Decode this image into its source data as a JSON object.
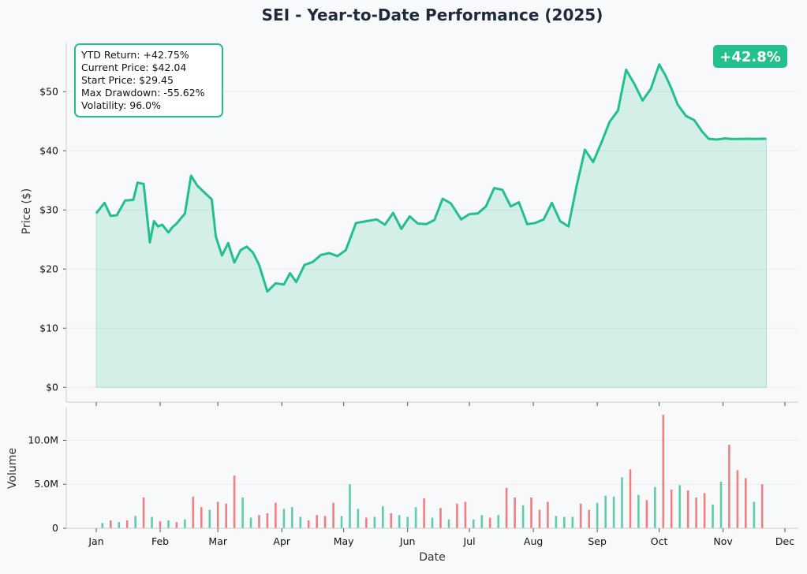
{
  "colors": {
    "background": "#f8f9fb",
    "price_line": "#22c08a",
    "price_fill": "#22c08a",
    "volume_up": "#5fcda5",
    "volume_down": "#ee8080",
    "badge": "#22c08a",
    "title": "#1e2a3a",
    "grid": "#e9ecf0"
  },
  "chart_data": [
    {
      "type": "line",
      "title": "SEI - Year-to-Date Performance (2025)",
      "ylabel": "Price ($)",
      "xlabel": "",
      "ylim": [
        -2.5,
        57.5
      ],
      "yticks": [
        0,
        10,
        20,
        30,
        40,
        50
      ],
      "ytick_labels": [
        "$0",
        "$10",
        "$20",
        "$30",
        "$40",
        "$50"
      ],
      "grid": true,
      "fill_under_line": true,
      "badge": "+42.8%",
      "stats_box": {
        "ytd_return": "YTD Return: +42.75%",
        "current_price": "Current Price: $42.04",
        "start_price": "Start Price: $29.45",
        "max_drawdown": "Max Drawdown: -55.62%",
        "volatility": "Volatility: 96.0%"
      },
      "series": [
        {
          "x": [
            "2025-01-01",
            "2025-01-05",
            "2025-01-08",
            "2025-01-11",
            "2025-01-15",
            "2025-01-19",
            "2025-01-21",
            "2025-01-24",
            "2025-01-27",
            "2025-01-29",
            "2025-01-31",
            "2025-02-02",
            "2025-02-05",
            "2025-02-07",
            "2025-02-09",
            "2025-02-13",
            "2025-02-16",
            "2025-02-19",
            "2025-02-22",
            "2025-02-26",
            "2025-02-28",
            "2025-03-03",
            "2025-03-06",
            "2025-03-09",
            "2025-03-12",
            "2025-03-15",
            "2025-03-18",
            "2025-03-21",
            "2025-03-25",
            "2025-03-29",
            "2025-04-02",
            "2025-04-05",
            "2025-04-08",
            "2025-04-12",
            "2025-04-16",
            "2025-04-20",
            "2025-04-24",
            "2025-04-28",
            "2025-05-02",
            "2025-05-07",
            "2025-05-12",
            "2025-05-17",
            "2025-05-21",
            "2025-05-25",
            "2025-05-29",
            "2025-06-02",
            "2025-06-06",
            "2025-06-10",
            "2025-06-14",
            "2025-06-18",
            "2025-06-22",
            "2025-06-27",
            "2025-07-01",
            "2025-07-05",
            "2025-07-09",
            "2025-07-13",
            "2025-07-17",
            "2025-07-21",
            "2025-07-25",
            "2025-07-29",
            "2025-08-02",
            "2025-08-06",
            "2025-08-10",
            "2025-08-14",
            "2025-08-18",
            "2025-08-22",
            "2025-08-26",
            "2025-08-30",
            "2025-09-03",
            "2025-09-07",
            "2025-09-11",
            "2025-09-15",
            "2025-09-19",
            "2025-09-23",
            "2025-09-27",
            "2025-10-01",
            "2025-10-04",
            "2025-10-07",
            "2025-10-10",
            "2025-10-14",
            "2025-10-18",
            "2025-10-22",
            "2025-10-25",
            "2025-10-29",
            "2025-11-02",
            "2025-11-05",
            "2025-11-09",
            "2025-11-13",
            "2025-11-17",
            "2025-11-20",
            "2025-11-22"
          ],
          "values": [
            29.45,
            31.2,
            29.0,
            29.1,
            31.6,
            31.7,
            34.6,
            34.4,
            24.5,
            28.1,
            27.2,
            27.5,
            26.2,
            27.1,
            27.7,
            29.4,
            35.8,
            34.1,
            33.1,
            31.8,
            25.5,
            22.3,
            24.4,
            21.1,
            23.2,
            23.8,
            22.8,
            20.7,
            16.2,
            17.6,
            17.4,
            19.3,
            17.8,
            20.7,
            21.2,
            22.4,
            22.7,
            22.2,
            23.2,
            27.8,
            28.1,
            28.4,
            27.5,
            29.5,
            26.8,
            28.9,
            27.7,
            27.6,
            28.3,
            31.9,
            31.1,
            28.4,
            29.3,
            29.4,
            30.6,
            33.7,
            33.4,
            30.6,
            31.3,
            27.6,
            27.8,
            28.4,
            31.2,
            28.1,
            27.2,
            34.1,
            40.2,
            38.1,
            41.4,
            44.9,
            46.8,
            53.7,
            51.3,
            48.5,
            50.5,
            54.6,
            52.8,
            50.5,
            47.8,
            45.9,
            45.2,
            43.2,
            42.04,
            41.9,
            42.1,
            42.0,
            42.0,
            42.04,
            42.0,
            42.04,
            42.04
          ]
        }
      ]
    },
    {
      "type": "bar",
      "xlabel": "Date",
      "ylabel": "Volume",
      "ylim": [
        0,
        13000000
      ],
      "yticks": [
        0,
        5000000,
        10000000
      ],
      "ytick_labels": [
        "0",
        "5.0M",
        "10.0M"
      ],
      "xtick_labels": [
        "Jan",
        "Feb",
        "Mar",
        "Apr",
        "May",
        "Jun",
        "Jul",
        "Aug",
        "Sep",
        "Oct",
        "Nov",
        "Dec"
      ],
      "series": [
        {
          "x": [
            "2025-01-04",
            "2025-01-08",
            "2025-01-12",
            "2025-01-16",
            "2025-01-20",
            "2025-01-24",
            "2025-01-28",
            "2025-02-01",
            "2025-02-05",
            "2025-02-09",
            "2025-02-13",
            "2025-02-17",
            "2025-02-21",
            "2025-02-25",
            "2025-03-01",
            "2025-03-05",
            "2025-03-09",
            "2025-03-13",
            "2025-03-17",
            "2025-03-21",
            "2025-03-25",
            "2025-03-29",
            "2025-04-02",
            "2025-04-06",
            "2025-04-10",
            "2025-04-14",
            "2025-04-18",
            "2025-04-22",
            "2025-04-26",
            "2025-04-30",
            "2025-05-04",
            "2025-05-08",
            "2025-05-12",
            "2025-05-16",
            "2025-05-20",
            "2025-05-24",
            "2025-05-28",
            "2025-06-01",
            "2025-06-05",
            "2025-06-09",
            "2025-06-13",
            "2025-06-17",
            "2025-06-21",
            "2025-06-25",
            "2025-06-29",
            "2025-07-03",
            "2025-07-07",
            "2025-07-11",
            "2025-07-15",
            "2025-07-19",
            "2025-07-23",
            "2025-07-27",
            "2025-07-31",
            "2025-08-04",
            "2025-08-08",
            "2025-08-12",
            "2025-08-16",
            "2025-08-20",
            "2025-08-24",
            "2025-08-28",
            "2025-09-01",
            "2025-09-05",
            "2025-09-09",
            "2025-09-13",
            "2025-09-17",
            "2025-09-21",
            "2025-09-25",
            "2025-09-29",
            "2025-10-03",
            "2025-10-07",
            "2025-10-11",
            "2025-10-15",
            "2025-10-19",
            "2025-10-23",
            "2025-10-27",
            "2025-10-31",
            "2025-11-04",
            "2025-11-08",
            "2025-11-12",
            "2025-11-16",
            "2025-11-20"
          ],
          "values": [
            600000,
            900000,
            700000,
            900000,
            1400000,
            3500000,
            1300000,
            800000,
            900000,
            700000,
            1000000,
            3600000,
            2400000,
            2100000,
            3000000,
            2800000,
            6000000,
            3500000,
            1200000,
            1500000,
            1700000,
            2900000,
            2200000,
            2400000,
            1300000,
            900000,
            1500000,
            1400000,
            2900000,
            1400000,
            5000000,
            2200000,
            1200000,
            1300000,
            2500000,
            1700000,
            1500000,
            1300000,
            2400000,
            3400000,
            1200000,
            2300000,
            1000000,
            2800000,
            3000000,
            1000000,
            1500000,
            1200000,
            1500000,
            4600000,
            3500000,
            2600000,
            3500000,
            2100000,
            3000000,
            1400000,
            1300000,
            1300000,
            2800000,
            2100000,
            2900000,
            3700000,
            3600000,
            5800000,
            6700000,
            3800000,
            3200000,
            4700000,
            12900000,
            4400000,
            4900000,
            4300000,
            3500000,
            4000000,
            2700000,
            5300000,
            9500000,
            6600000,
            5700000,
            3000000,
            5000000
          ],
          "direction": [
            "up",
            "down",
            "up",
            "down",
            "up",
            "down",
            "up",
            "down",
            "up",
            "down",
            "up",
            "down",
            "down",
            "up",
            "down",
            "down",
            "down",
            "up",
            "up",
            "down",
            "down",
            "down",
            "up",
            "up",
            "up",
            "down",
            "down",
            "down",
            "down",
            "up",
            "up",
            "up",
            "down",
            "up",
            "up",
            "down",
            "up",
            "up",
            "up",
            "down",
            "up",
            "down",
            "up",
            "down",
            "down",
            "up",
            "up",
            "down",
            "up",
            "down",
            "down",
            "up",
            "down",
            "down",
            "down",
            "up",
            "up",
            "up",
            "down",
            "down",
            "up",
            "up",
            "up",
            "up",
            "down",
            "up",
            "down",
            "up",
            "down",
            "down",
            "up",
            "down",
            "down",
            "down",
            "up",
            "up",
            "down",
            "down",
            "down",
            "up",
            "down"
          ]
        }
      ]
    }
  ]
}
